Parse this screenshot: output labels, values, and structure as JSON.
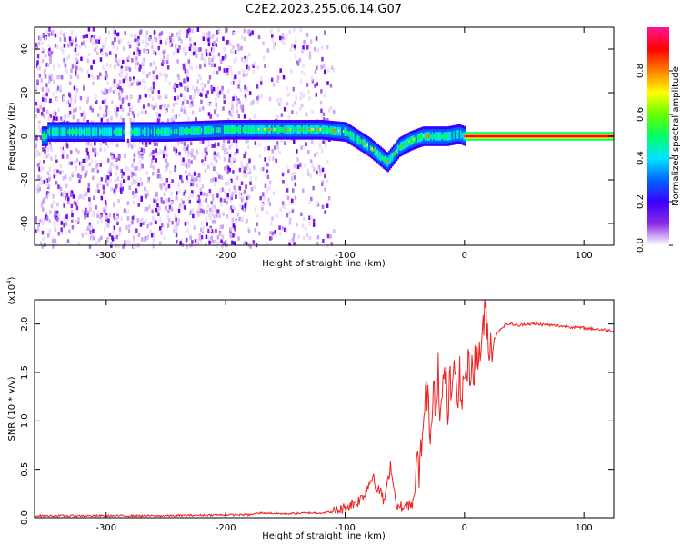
{
  "title": "C2E2.2023.255.06.14.G07",
  "colors": {
    "snr_line": "#ee2222",
    "background": "#ffffff",
    "colormap": [
      "#ffffff",
      "#c9a2f2",
      "#8a2be2",
      "#3b00ff",
      "#0066ff",
      "#00e5ff",
      "#00ff66",
      "#66ff00",
      "#ffff00",
      "#ff7f00",
      "#ff0000",
      "#ff1493"
    ]
  },
  "chart_data": [
    {
      "type": "heatmap",
      "title": "",
      "xlabel": "Height of straight line (km)",
      "ylabel": "Frequency (Hz)",
      "xlim": [
        -360,
        125
      ],
      "ylim": [
        -50,
        50
      ],
      "x_ticks": [
        -300,
        -200,
        -100,
        0,
        100
      ],
      "x_tick_labels": [
        "-300",
        "-200",
        "-100",
        "0",
        "100"
      ],
      "y_ticks": [
        -40,
        -20,
        0,
        20,
        40
      ],
      "y_tick_labels": [
        "-40",
        "-20",
        "0",
        "20",
        "40"
      ],
      "colorbar": {
        "label": "Normalized spectral amplitude",
        "range": [
          0.0,
          1.0
        ],
        "ticks": [
          0.0,
          0.2,
          0.4,
          0.6,
          0.8
        ],
        "tick_labels": [
          "0.0",
          "0.2",
          "0.4",
          "0.6",
          "0.8"
        ]
      },
      "ridge": {
        "x": [
          -350,
          -300,
          -250,
          -200,
          -150,
          -120,
          -100,
          -80,
          -65,
          -55,
          -45,
          -35,
          -25,
          -15,
          -5,
          0,
          125
        ],
        "y": [
          2,
          2,
          2,
          3,
          3,
          3,
          2,
          -5,
          -12,
          -5,
          -2,
          0,
          0,
          0,
          1,
          0,
          0
        ]
      },
      "noise_extent_x": [
        -360,
        -120
      ]
    },
    {
      "type": "line",
      "title": "",
      "xlabel": "Height of straight line (km)",
      "ylabel": "SNR (10 * v/v)",
      "y_scale_note": "(x10",
      "y_scale_exp": "4",
      "y_scale_close": ")",
      "xlim": [
        -360,
        125
      ],
      "ylim": [
        0.0,
        2.25
      ],
      "x_ticks": [
        -300,
        -200,
        -100,
        0,
        100
      ],
      "x_tick_labels": [
        "-300",
        "-200",
        "-100",
        "0",
        "100"
      ],
      "y_ticks": [
        0.0,
        0.5,
        1.0,
        1.5,
        2.0
      ],
      "y_tick_labels": [
        "0.0",
        "0.5",
        "1.0",
        "1.5",
        "2.0"
      ],
      "series": [
        {
          "x": [
            -360,
            -300,
            -250,
            -200,
            -180,
            -170,
            -150,
            -130,
            -120,
            -110,
            -100,
            -95,
            -90,
            -85,
            -80,
            -76,
            -73,
            -70,
            -68,
            -65,
            -62,
            -60,
            -58,
            -55,
            -52,
            -50,
            -48,
            -45,
            -42,
            -40,
            -38,
            -36,
            -34,
            -32,
            -30,
            -28,
            -26,
            -24,
            -22,
            -20,
            -18,
            -16,
            -14,
            -12,
            -10,
            -8,
            -6,
            -4,
            -2,
            0,
            5,
            10,
            15,
            18,
            20,
            25,
            30,
            35,
            40,
            45,
            50,
            60,
            80,
            100,
            125
          ],
          "y": [
            0.02,
            0.02,
            0.02,
            0.03,
            0.03,
            0.05,
            0.04,
            0.05,
            0.05,
            0.06,
            0.1,
            0.14,
            0.16,
            0.22,
            0.35,
            0.45,
            0.25,
            0.3,
            0.15,
            0.3,
            0.55,
            0.4,
            0.2,
            0.1,
            0.12,
            0.08,
            0.15,
            0.1,
            0.2,
            0.6,
            0.4,
            0.8,
            1.0,
            1.3,
            1.1,
            0.9,
            1.4,
            1.2,
            1.6,
            1.0,
            1.35,
            1.5,
            1.1,
            1.4,
            1.25,
            1.55,
            1.3,
            1.45,
            1.2,
            1.5,
            1.55,
            1.6,
            1.85,
            2.2,
            1.75,
            1.85,
            1.95,
            2.0,
            2.0,
            1.98,
            2.0,
            2.0,
            1.98,
            1.96,
            1.93
          ]
        }
      ]
    }
  ]
}
